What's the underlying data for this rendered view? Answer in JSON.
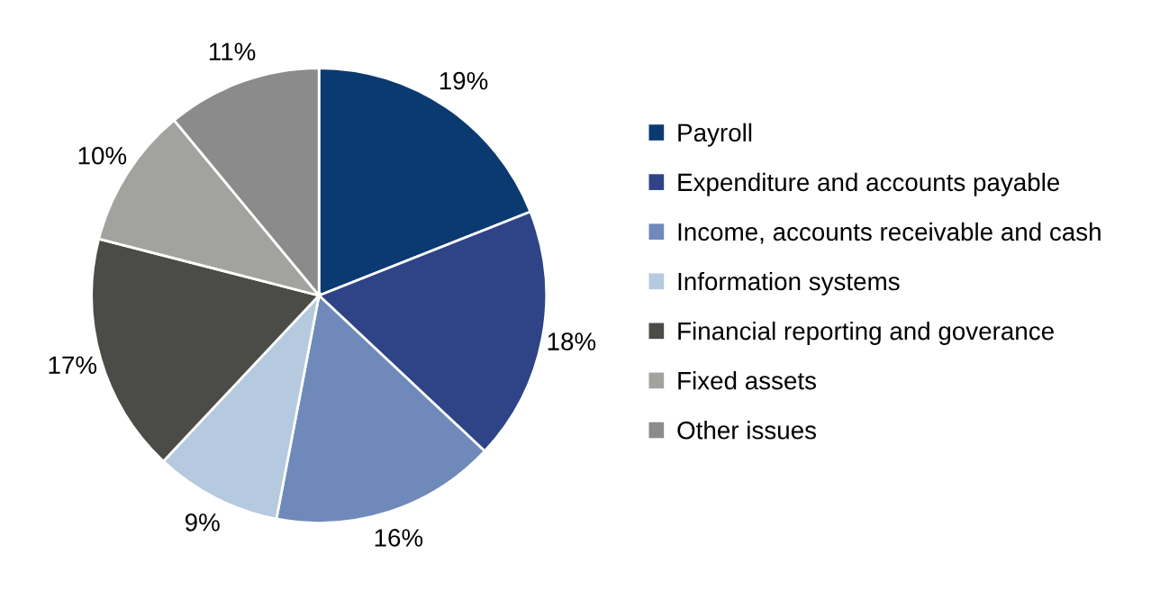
{
  "chart_data": {
    "type": "pie",
    "categories": [
      "Payroll",
      "Expenditure and accounts payable",
      "Income, accounts receivable and cash",
      "Information systems",
      "Financial reporting and goverance",
      "Fixed assets",
      "Other issues"
    ],
    "values": [
      19,
      18,
      16,
      9,
      17,
      10,
      11
    ],
    "colors": [
      "#0b3a70",
      "#2e4487",
      "#6f89bb",
      "#b5c9df",
      "#4b4c48",
      "#a2a39e",
      "#8b8b8b"
    ],
    "value_labels": [
      "19%",
      "18%",
      "16%",
      "9%",
      "17%",
      "10%",
      "11%"
    ],
    "legend": "right"
  }
}
